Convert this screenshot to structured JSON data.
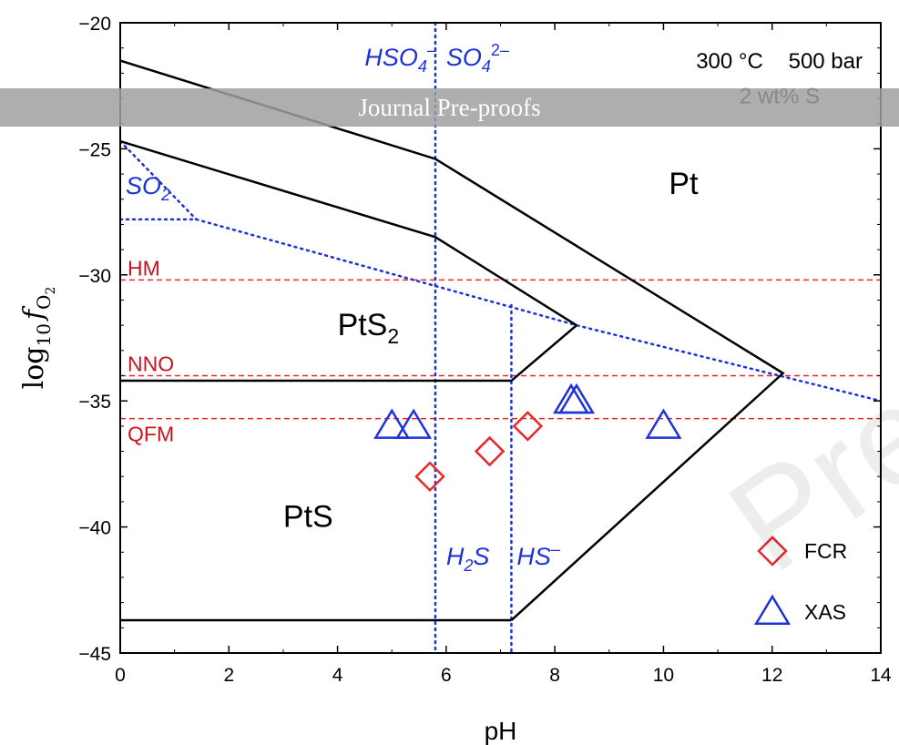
{
  "banner": "Journal Pre-proofs",
  "watermark": "Pre-proofs",
  "colors": {
    "boundary": "#000000",
    "sulfur_species": "#1f32d8",
    "buffer": "#e8282d",
    "FCR": "#e8282d",
    "XAS": "#1f32d8"
  },
  "chart_data": {
    "type": "scatter",
    "title": "",
    "xlabel": "pH",
    "ylabel_parts": [
      "log",
      "10",
      "f",
      "O",
      "2"
    ],
    "xlim": [
      0,
      14
    ],
    "ylim": [
      -45,
      -20
    ],
    "xticks": [
      0,
      2,
      4,
      6,
      8,
      10,
      12,
      14
    ],
    "yticks": [
      -20,
      -25,
      -30,
      -35,
      -40,
      -45
    ],
    "conditions": [
      "300 °C",
      "500 bar",
      "2 wt% S"
    ],
    "regions": [
      {
        "label": "Pt",
        "x": 10.1,
        "y": -26.8
      },
      {
        "label": "PtS",
        "sub": "2",
        "x": 4.0,
        "y": -32.4
      },
      {
        "label": "PtS",
        "x": 3.0,
        "y": -40.0
      }
    ],
    "boundaries": [
      {
        "name": "Pt upper",
        "points": [
          [
            0,
            -21.5
          ],
          [
            5.8,
            -25.4
          ],
          [
            12.2,
            -33.9
          ],
          [
            7.2,
            -43.7
          ]
        ]
      },
      {
        "name": "PtS2 upper",
        "points": [
          [
            0,
            -24.7
          ],
          [
            5.8,
            -28.5
          ],
          [
            8.4,
            -32
          ]
        ]
      },
      {
        "name": "PtS2 lower",
        "points": [
          [
            8.4,
            -32
          ],
          [
            7.2,
            -34.2
          ],
          [
            0,
            -34.2
          ]
        ]
      },
      {
        "name": "PtS bottom",
        "points": [
          [
            0,
            -43.7
          ],
          [
            7.2,
            -43.7
          ]
        ]
      }
    ],
    "species_lines": [
      {
        "name": "HSO4-/SO4 2-",
        "points": [
          [
            5.8,
            -20
          ],
          [
            5.8,
            -45
          ]
        ]
      },
      {
        "name": "H2S/HS-",
        "points": [
          [
            7.2,
            -31.2
          ],
          [
            7.2,
            -45
          ]
        ]
      },
      {
        "name": "SO2 upper",
        "points": [
          [
            0,
            -24.7
          ],
          [
            1.4,
            -27.8
          ]
        ]
      },
      {
        "name": "SO2 lower",
        "points": [
          [
            0,
            -27.8
          ],
          [
            1.4,
            -27.8
          ]
        ]
      },
      {
        "name": "sulfate-sulfide",
        "points": [
          [
            1.4,
            -27.8
          ],
          [
            8.4,
            -32
          ],
          [
            14,
            -35
          ]
        ]
      }
    ],
    "species_labels": [
      {
        "base": "HSO",
        "sub": "4",
        "sup": "–",
        "x": 4.5,
        "y": -21.7
      },
      {
        "base": "SO",
        "sub": "4",
        "sup": "2–",
        "x": 6.0,
        "y": -21.7
      },
      {
        "base": "SO",
        "sub": "2",
        "sup": "",
        "x": 0.1,
        "y": -26.8
      },
      {
        "base": "H",
        "sub": "2",
        "sup": "",
        "x": 6.0,
        "y": -41.5,
        "tail": "S"
      },
      {
        "base": "HS",
        "sub": "",
        "sup": "–",
        "x": 7.3,
        "y": -41.5
      }
    ],
    "buffers": [
      {
        "name": "HM",
        "y": -30.2
      },
      {
        "name": "NNO",
        "y": -34
      },
      {
        "name": "QFM",
        "y": -35.7
      }
    ],
    "series": [
      {
        "name": "FCR",
        "marker": "diamond",
        "points": [
          [
            5.7,
            -38
          ],
          [
            6.8,
            -37
          ],
          [
            7.5,
            -36
          ]
        ]
      },
      {
        "name": "XAS",
        "marker": "triangle",
        "points": [
          [
            5.0,
            -36
          ],
          [
            5.4,
            -36
          ],
          [
            8.3,
            -35
          ],
          [
            8.4,
            -35
          ],
          [
            10.0,
            -36
          ]
        ]
      }
    ],
    "legend_position": "bottom-right"
  }
}
